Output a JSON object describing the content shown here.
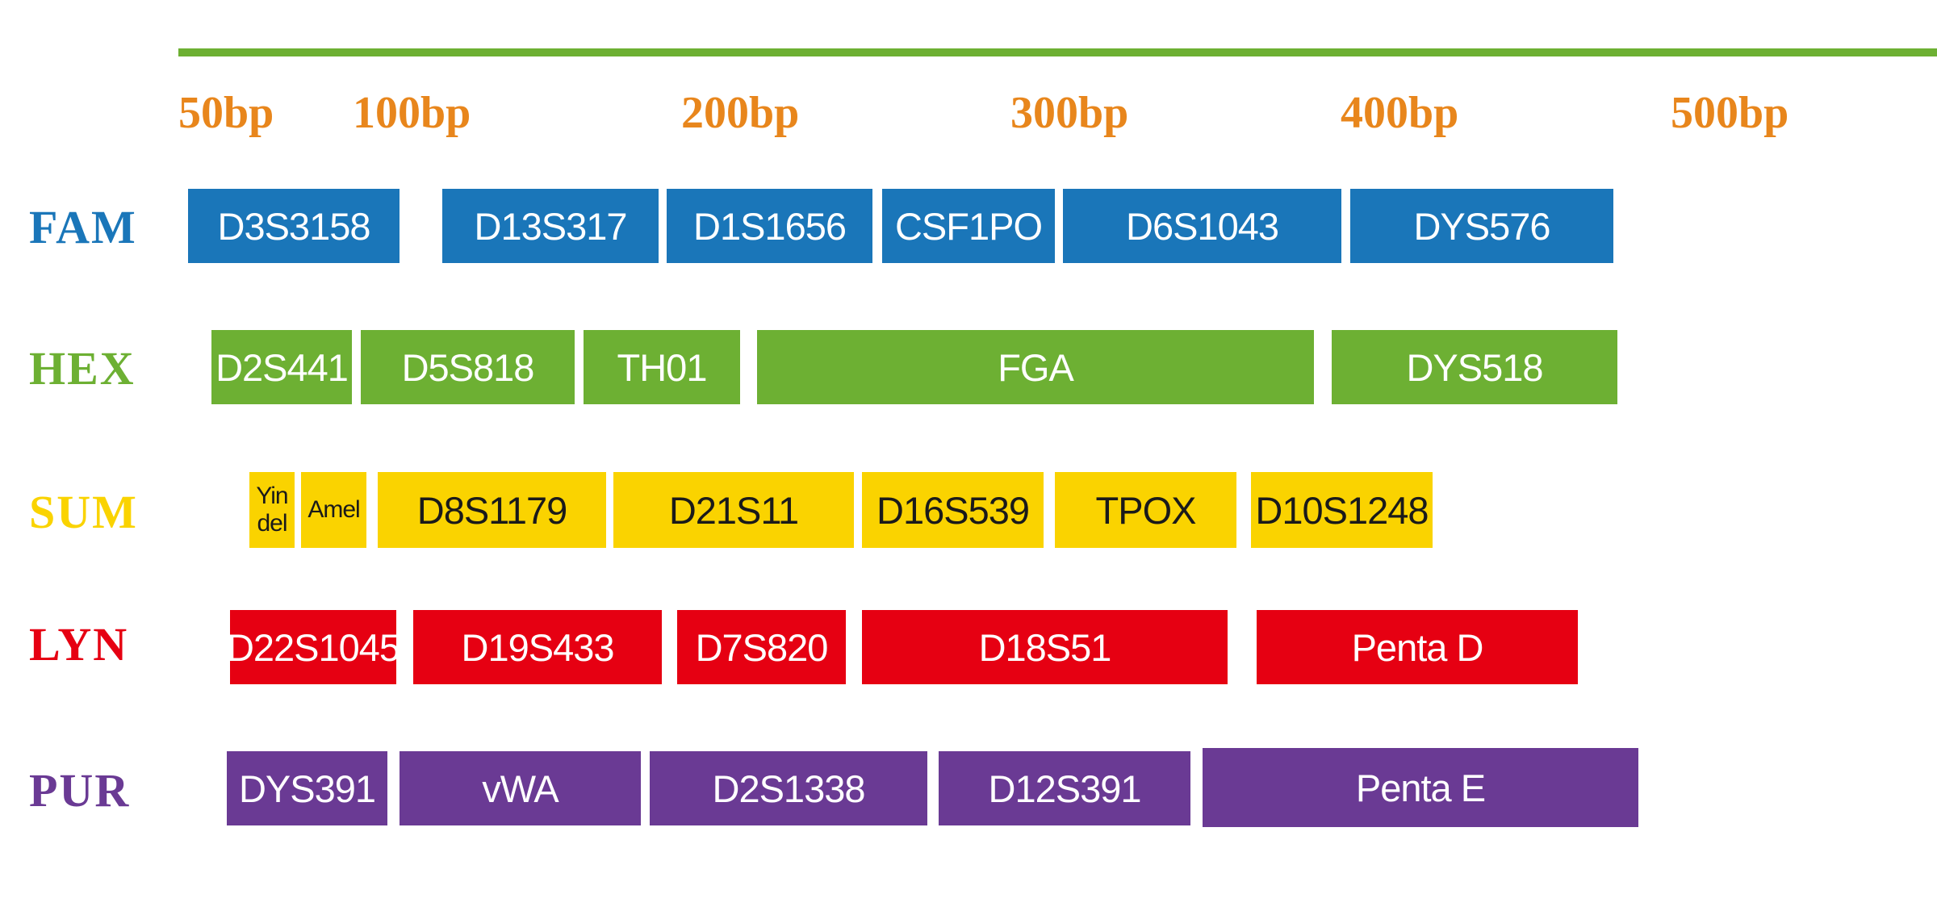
{
  "scale": {
    "color": "#6db033",
    "tick_color": "#e8861c",
    "ticks": [
      "50bp",
      "100bp",
      "200bp",
      "300bp",
      "400bp",
      "500bp"
    ]
  },
  "rows": [
    {
      "dye": "FAM",
      "color": "#1a76b9",
      "text_color": "#ffffff",
      "loci": [
        "D3S3158",
        "D13S317",
        "D1S1656",
        "CSF1PO",
        "D6S1043",
        "DYS576"
      ]
    },
    {
      "dye": "HEX",
      "color": "#6db033",
      "text_color": "#ffffff",
      "loci": [
        "D2S441",
        "D5S818",
        "TH01",
        "FGA",
        "DYS518"
      ]
    },
    {
      "dye": "SUM",
      "color": "#fad300",
      "text_color": "#1a1a1a",
      "loci": [
        "Yin del",
        "Amel",
        "D8S1179",
        "D21S11",
        "D16S539",
        "TPOX",
        "D10S1248"
      ]
    },
    {
      "dye": "LYN",
      "color": "#e60012",
      "text_color": "#ffffff",
      "loci": [
        "D22S1045",
        "D19S433",
        "D7S820",
        "D18S51",
        "Penta D"
      ]
    },
    {
      "dye": "PUR",
      "color": "#6a3a94",
      "text_color": "#ffffff",
      "loci": [
        "DYS391",
        "vWA",
        "D2S1338",
        "D12S391",
        "Penta E"
      ]
    }
  ]
}
